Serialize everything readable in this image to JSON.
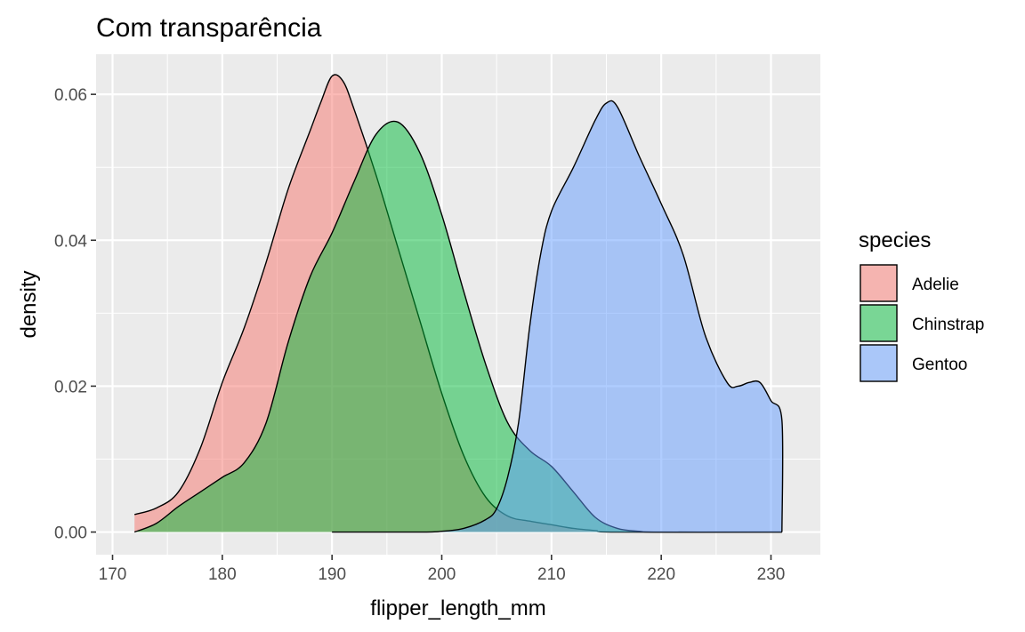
{
  "chart_data": {
    "type": "area",
    "title": "Com transparência",
    "xlabel": "flipper_length_mm",
    "ylabel": "density",
    "xlim": [
      168.5,
      234.5
    ],
    "ylim": [
      -0.0031,
      0.0655
    ],
    "x_ticks": [
      170,
      180,
      190,
      200,
      210,
      220,
      230
    ],
    "y_ticks": [
      0.0,
      0.02,
      0.04,
      0.06
    ],
    "x_tick_labels": [
      "170",
      "180",
      "190",
      "200",
      "210",
      "220",
      "230"
    ],
    "y_tick_labels": [
      "0.00",
      "0.02",
      "0.04",
      "0.06"
    ],
    "grid": true,
    "legend": {
      "title": "species",
      "position": "right"
    },
    "series": [
      {
        "name": "Adelie",
        "color": "#F8766D",
        "points": [
          [
            172,
            0.0024
          ],
          [
            174,
            0.0033
          ],
          [
            176,
            0.0055
          ],
          [
            178,
            0.0115
          ],
          [
            180,
            0.0205
          ],
          [
            182,
            0.028
          ],
          [
            184,
            0.037
          ],
          [
            186,
            0.047
          ],
          [
            188,
            0.055
          ],
          [
            189,
            0.059
          ],
          [
            190,
            0.0625
          ],
          [
            191,
            0.0618
          ],
          [
            192,
            0.058
          ],
          [
            194,
            0.049
          ],
          [
            196,
            0.039
          ],
          [
            198,
            0.029
          ],
          [
            200,
            0.019
          ],
          [
            202,
            0.0105
          ],
          [
            204,
            0.0048
          ],
          [
            206,
            0.0022
          ],
          [
            208,
            0.0015
          ],
          [
            210,
            0.001
          ],
          [
            212,
            0.0005
          ],
          [
            214,
            0.0002
          ],
          [
            216,
            0.0
          ],
          [
            231,
            0.0
          ]
        ]
      },
      {
        "name": "Chinstrap",
        "color": "#00BA38",
        "points": [
          [
            172,
            0.0
          ],
          [
            174,
            0.0012
          ],
          [
            176,
            0.0035
          ],
          [
            178,
            0.0055
          ],
          [
            180,
            0.0075
          ],
          [
            182,
            0.0095
          ],
          [
            184,
            0.015
          ],
          [
            186,
            0.026
          ],
          [
            188,
            0.035
          ],
          [
            190,
            0.041
          ],
          [
            192,
            0.048
          ],
          [
            194,
            0.0545
          ],
          [
            196,
            0.0562
          ],
          [
            198,
            0.052
          ],
          [
            200,
            0.0435
          ],
          [
            202,
            0.033
          ],
          [
            204,
            0.023
          ],
          [
            206,
            0.015
          ],
          [
            208,
            0.0112
          ],
          [
            210,
            0.009
          ],
          [
            212,
            0.0055
          ],
          [
            214,
            0.002
          ],
          [
            216,
            0.0005
          ],
          [
            218,
            0.0001
          ],
          [
            220,
            0.0
          ],
          [
            231,
            0.0
          ]
        ]
      },
      {
        "name": "Gentoo",
        "color": "#619CFF",
        "points": [
          [
            190,
            0.0
          ],
          [
            198,
            0.0
          ],
          [
            200,
            0.0001
          ],
          [
            202,
            0.0005
          ],
          [
            204,
            0.0017
          ],
          [
            205,
            0.0032
          ],
          [
            206,
            0.0075
          ],
          [
            207,
            0.015
          ],
          [
            208,
            0.028
          ],
          [
            209,
            0.038
          ],
          [
            210,
            0.044
          ],
          [
            212,
            0.05
          ],
          [
            214,
            0.0565
          ],
          [
            215,
            0.0588
          ],
          [
            216,
            0.0583
          ],
          [
            218,
            0.0515
          ],
          [
            220,
            0.045
          ],
          [
            222,
            0.038
          ],
          [
            224,
            0.027
          ],
          [
            226,
            0.0205
          ],
          [
            227,
            0.02
          ],
          [
            228,
            0.0205
          ],
          [
            229,
            0.0205
          ],
          [
            230,
            0.018
          ],
          [
            231,
            0.0153
          ],
          [
            231,
            0.0
          ]
        ]
      }
    ]
  }
}
